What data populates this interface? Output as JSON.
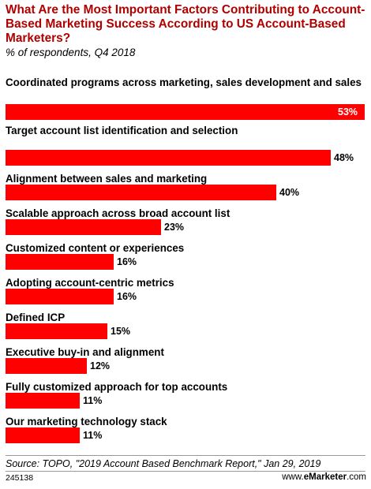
{
  "header": {
    "title": "What Are the Most Important Factors Contributing to Account-Based Marketing Success According to US Account-Based Marketers?",
    "subtitle": "% of respondents, Q4 2018"
  },
  "chart_data": {
    "type": "bar",
    "orientation": "horizontal",
    "categories": [
      "Coordinated programs across marketing, sales development and sales",
      "Target account list identification and selection",
      "Alignment between sales and marketing",
      "Scalable approach across broad account list",
      "Customized content or experiences",
      "Adopting account-centric metrics",
      "Defined ICP",
      "Executive buy-in and alignment",
      "Fully customized approach for top accounts",
      "Our marketing technology stack"
    ],
    "values": [
      53,
      48,
      40,
      23,
      16,
      16,
      15,
      12,
      11,
      11
    ],
    "value_labels": [
      "53%",
      "48%",
      "40%",
      "23%",
      "16%",
      "16%",
      "15%",
      "12%",
      "11%",
      "11%"
    ],
    "title": "What Are the Most Important Factors Contributing to Account-Based Marketing Success According to US Account-Based Marketers?",
    "subtitle": "% of respondents, Q4 2018",
    "xlabel": "",
    "ylabel": "",
    "xlim": [
      0,
      53
    ],
    "grid": false,
    "legend": "none",
    "bar_color": "#ff0000"
  },
  "colors": {
    "title": "#b10000",
    "bar": "#ff0000"
  },
  "footer": {
    "source": "Source: TOPO, \"2019 Account Based Benchmark Report,\" Jan 29, 2019",
    "code": "245138",
    "brand_prefix": "www.",
    "brand_name": "eMarketer",
    "brand_suffix": ".com"
  }
}
